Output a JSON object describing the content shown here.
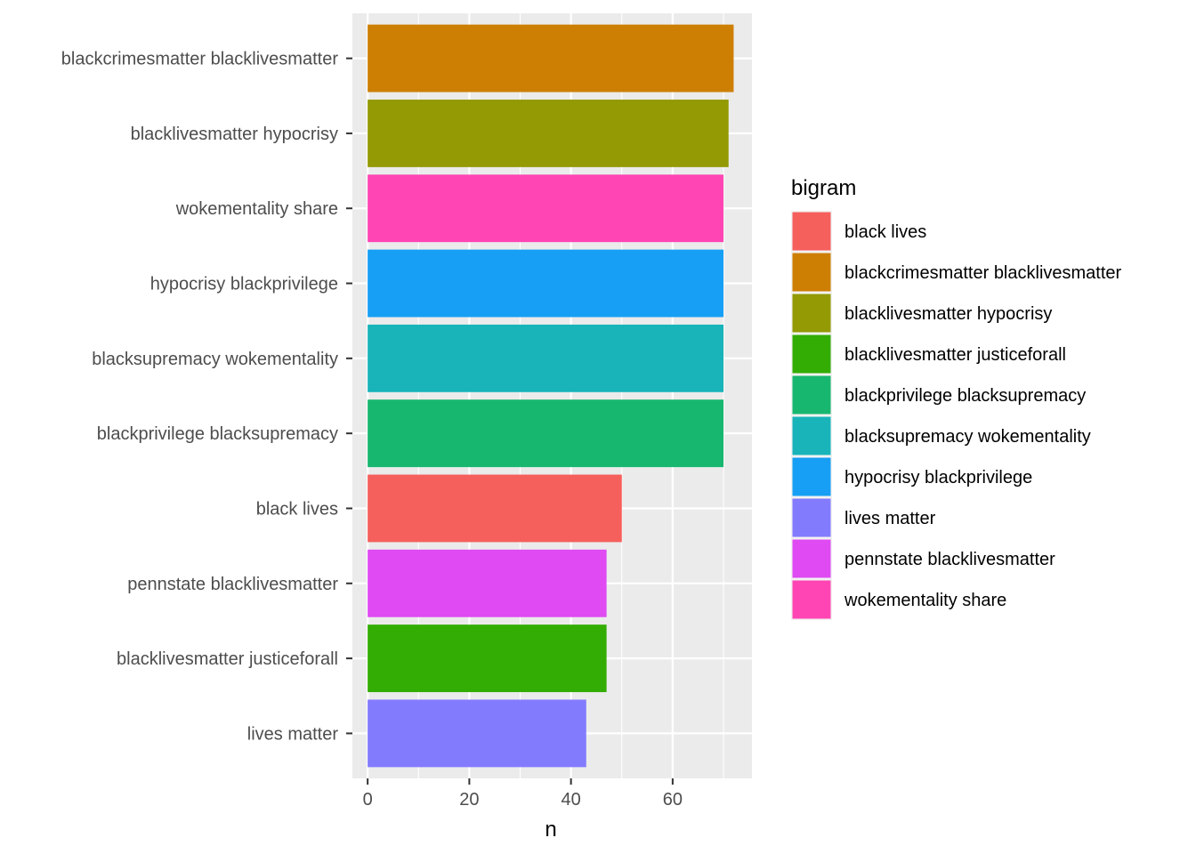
{
  "chart_data": {
    "type": "bar",
    "orientation": "horizontal",
    "xlabel": "n",
    "ylabel": "",
    "xlim": [
      -3,
      75.6
    ],
    "x_ticks": [
      0,
      20,
      40,
      60
    ],
    "grid": true,
    "categories": [
      "blackcrimesmatter blacklivesmatter",
      "blacklivesmatter hypocrisy",
      "wokementality share",
      "hypocrisy blackprivilege",
      "blacksupremacy wokementality",
      "blackprivilege blacksupremacy",
      "black lives",
      "pennstate blacklivesmatter",
      "blacklivesmatter justiceforall",
      "lives matter"
    ],
    "values": [
      72,
      71,
      70,
      70,
      70,
      70,
      50,
      47,
      47,
      43
    ],
    "colors": [
      "#CD7F03",
      "#939A03",
      "#FE45B3",
      "#169FF4",
      "#18B4BA",
      "#18B76F",
      "#F55F5C",
      "#DF4AF2",
      "#33AD04",
      "#837BFE"
    ],
    "legend": {
      "title": "bigram",
      "placement": "right",
      "items": [
        {
          "label": "black lives",
          "color": "#F55F5C"
        },
        {
          "label": "blackcrimesmatter blacklivesmatter",
          "color": "#CD7F03"
        },
        {
          "label": "blacklivesmatter hypocrisy",
          "color": "#939A03"
        },
        {
          "label": "blacklivesmatter justiceforall",
          "color": "#33AD04"
        },
        {
          "label": "blackprivilege blacksupremacy",
          "color": "#18B76F"
        },
        {
          "label": "blacksupremacy wokementality",
          "color": "#18B4BA"
        },
        {
          "label": "hypocrisy blackprivilege",
          "color": "#169FF4"
        },
        {
          "label": "lives matter",
          "color": "#837BFE"
        },
        {
          "label": "pennstate blacklivesmatter",
          "color": "#DF4AF2"
        },
        {
          "label": "wokementality share",
          "color": "#FE45B3"
        }
      ]
    }
  }
}
